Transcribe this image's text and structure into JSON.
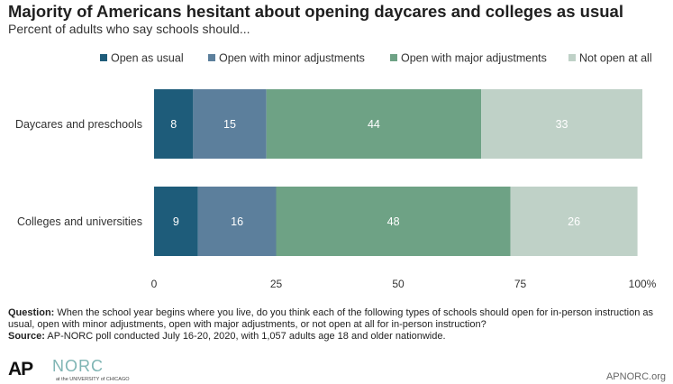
{
  "header": {
    "title": "Majority of Americans hesitant about opening daycares and colleges as usual",
    "subtitle": "Percent of adults who say schools should..."
  },
  "chart_data": {
    "type": "bar",
    "orientation": "horizontal",
    "stacked": true,
    "categories": [
      "Daycares and preschools",
      "Colleges and universities"
    ],
    "series": [
      {
        "name": "Open as usual",
        "color": "#1e5c7a",
        "values": [
          8,
          9
        ]
      },
      {
        "name": "Open with minor adjustments",
        "color": "#5c7f9c",
        "values": [
          15,
          16
        ]
      },
      {
        "name": "Open with major adjustments",
        "color": "#6ea285",
        "values": [
          44,
          48
        ]
      },
      {
        "name": "Not open at all",
        "color": "#bfd1c7",
        "values": [
          33,
          26
        ]
      }
    ],
    "xlim": [
      0,
      100
    ],
    "xticks": [
      0,
      25,
      50,
      75,
      100
    ],
    "xtick_labels": [
      "0",
      "25",
      "50",
      "75",
      "100%"
    ],
    "legend_position": "top",
    "grid": false
  },
  "notes": {
    "question_label": "Question:",
    "question_text": " When the school year begins where you live, do you think each of the following types of schools should open for in-person instruction as usual, open with minor adjustments, open with major adjustments, or not open at all for in-person instruction?",
    "source_label": "Source:",
    "source_text": " AP-NORC poll conducted July 16-20, 2020, with 1,057 adults age 18 and older nationwide."
  },
  "footer": {
    "ap_logo": "AP",
    "norc_logo": "NORC",
    "norc_sub": "at the UNIVERSITY of CHICAGO",
    "site": "APNORC.org"
  }
}
